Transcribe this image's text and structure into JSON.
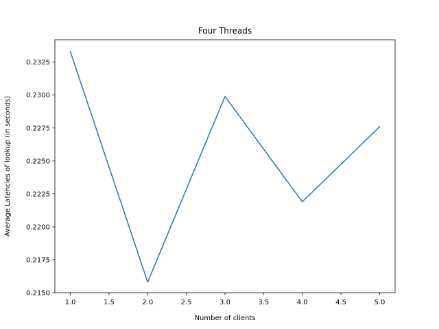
{
  "chart_data": {
    "type": "line",
    "title": "Four Threads",
    "xlabel": "Number of clients",
    "ylabel": "Average Latencies of lookup (in seconds)",
    "x": [
      1,
      2,
      3,
      4,
      5
    ],
    "series": [
      {
        "values": [
          0.2333,
          0.2158,
          0.2299,
          0.2219,
          0.2276
        ],
        "color": "#1f77b4"
      }
    ],
    "xlim": [
      0.8,
      5.2
    ],
    "ylim": [
      0.215,
      0.2342
    ],
    "xticks": [
      "1.0",
      "1.5",
      "2.0",
      "2.5",
      "3.0",
      "3.5",
      "4.0",
      "4.5",
      "5.0"
    ],
    "yticks": [
      "0.2150",
      "0.2175",
      "0.2200",
      "0.2225",
      "0.2250",
      "0.2275",
      "0.2300",
      "0.2325"
    ],
    "grid": false,
    "legend": "none"
  }
}
